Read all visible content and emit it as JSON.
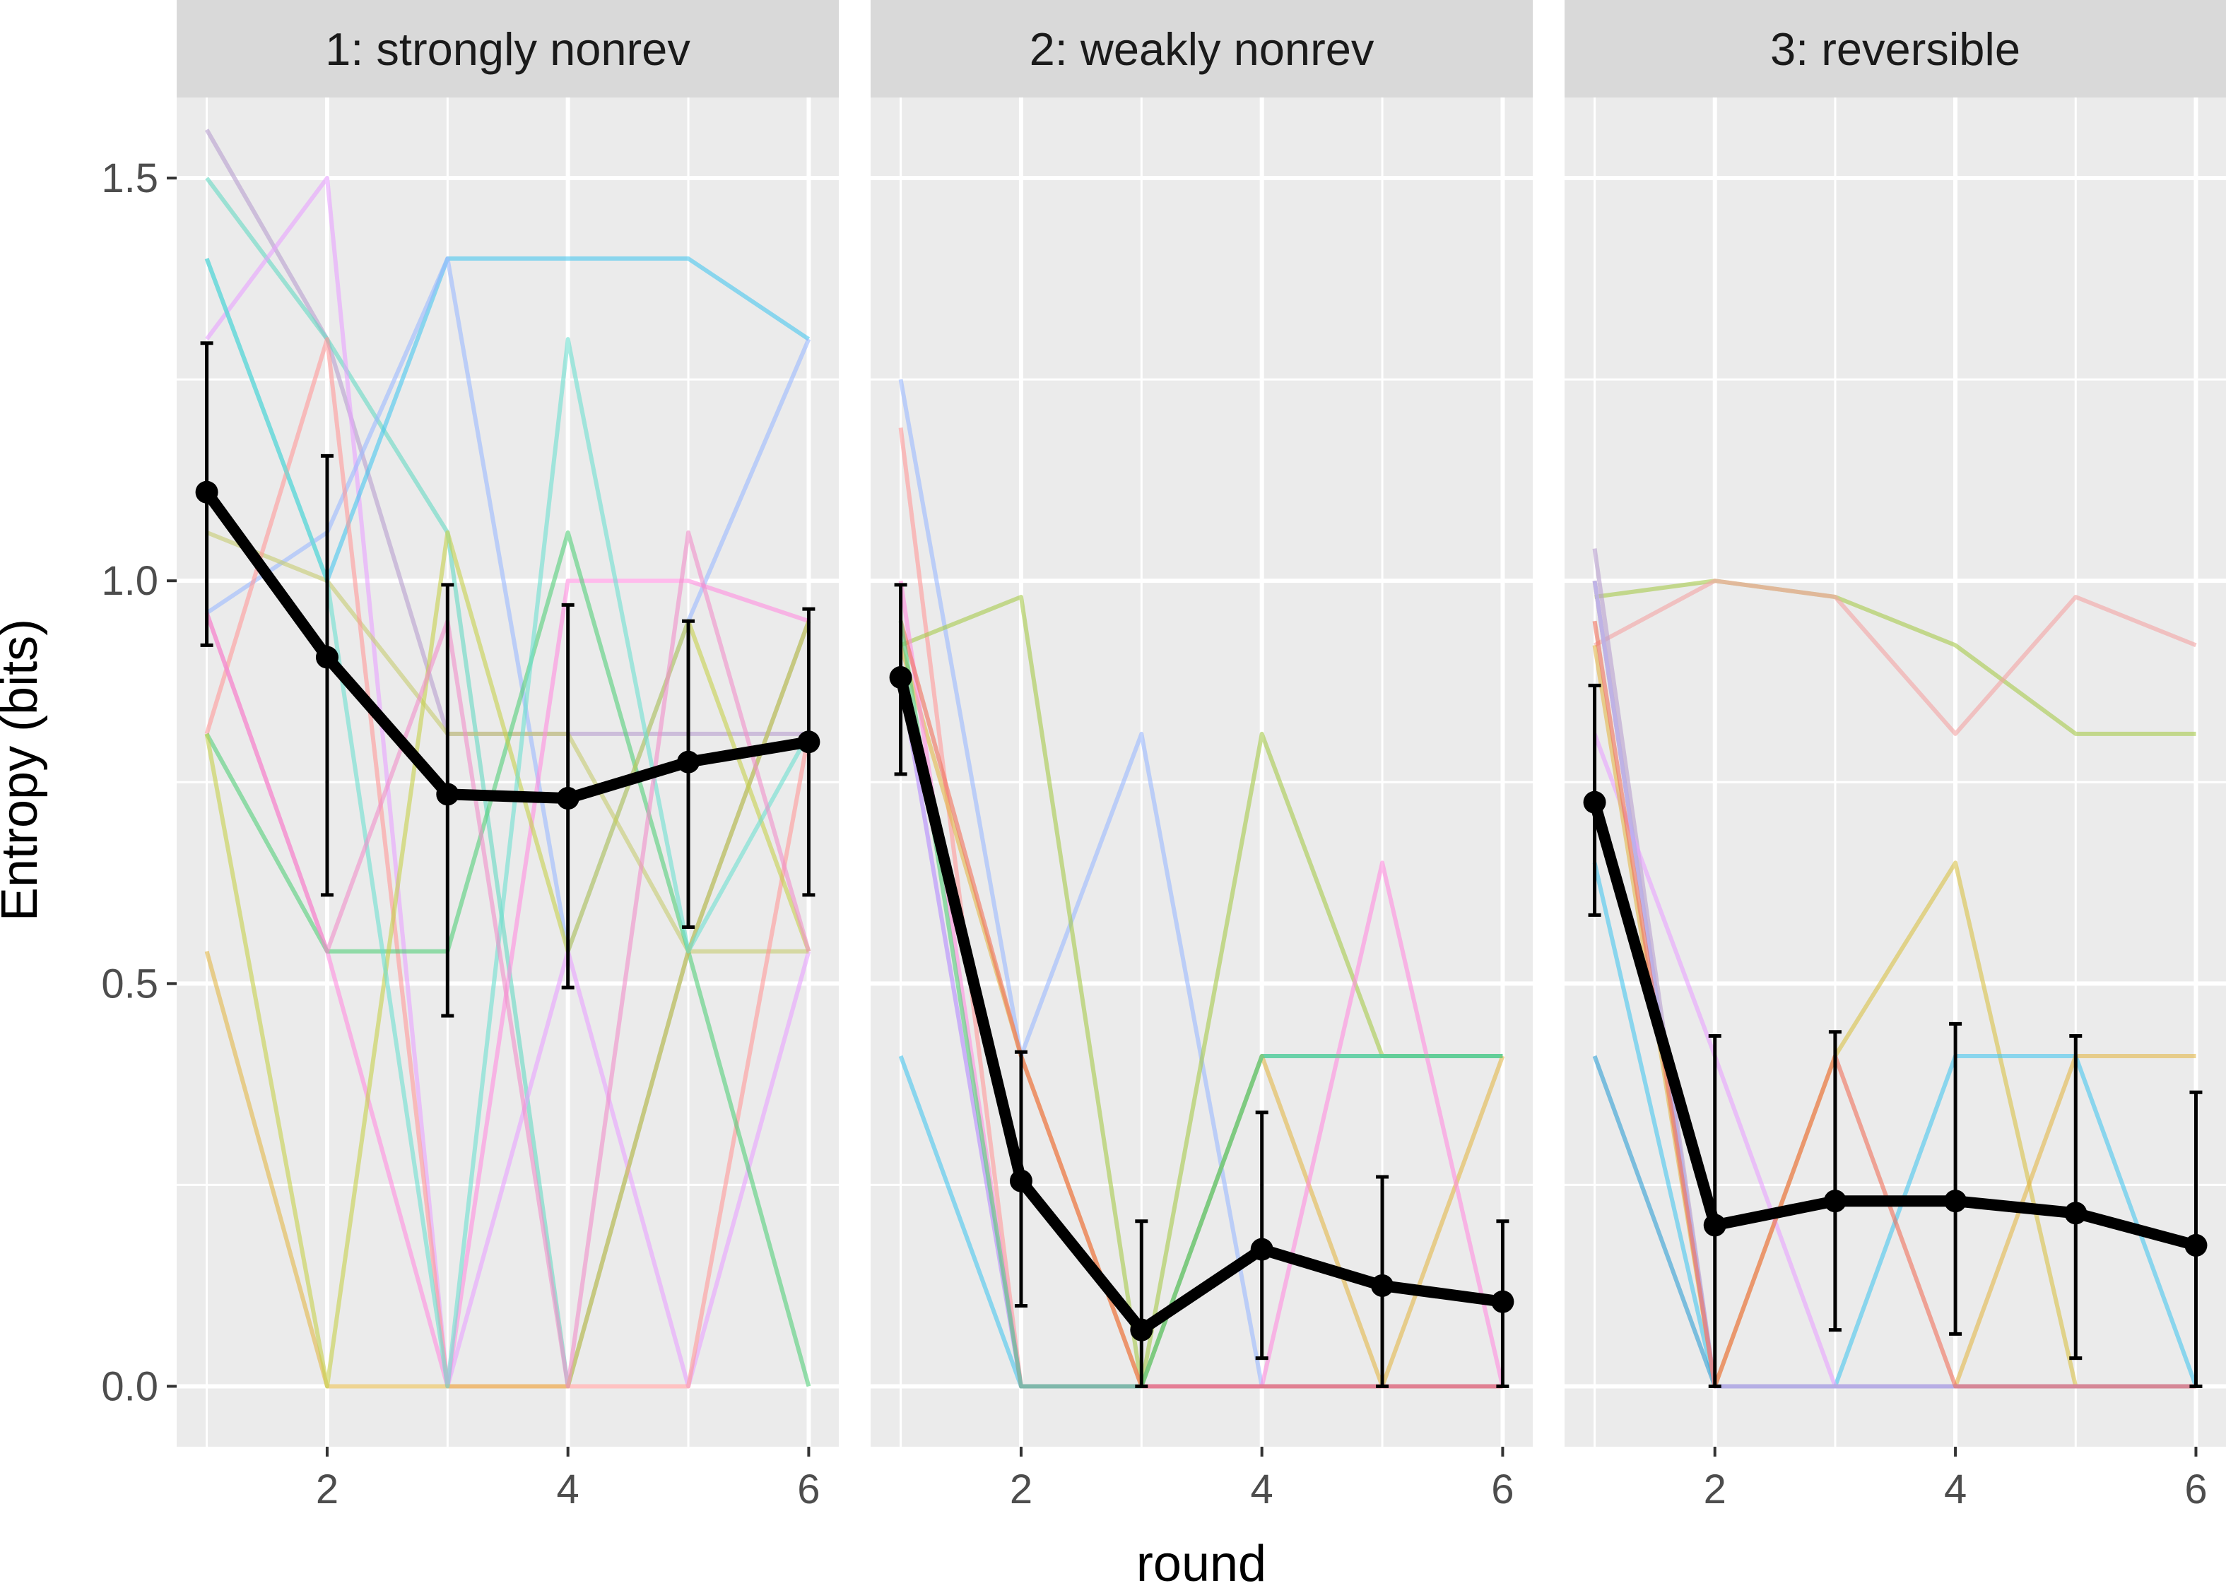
{
  "chart_data": {
    "type": "line",
    "ylabel": "Entropy (bits)",
    "xlabel": "round",
    "x": [
      1,
      2,
      3,
      4,
      5,
      6
    ],
    "xlim": [
      0.75,
      6.25
    ],
    "ylim": [
      -0.075,
      1.6
    ],
    "xticks": [
      2,
      4,
      6
    ],
    "yticks": [
      0.0,
      0.5,
      1.0,
      1.5
    ],
    "ytick_labels": [
      "0.0",
      "0.5",
      "1.0",
      "1.5"
    ],
    "grid": true,
    "mean_color": "#000000",
    "panels": [
      {
        "title": "1: strongly nonrev",
        "mean": {
          "values": [
            1.11,
            0.905,
            0.735,
            0.73,
            0.775,
            0.8
          ],
          "lower": [
            0.92,
            0.61,
            0.46,
            0.495,
            0.57,
            0.61
          ],
          "upper": [
            1.295,
            1.155,
            0.995,
            0.97,
            0.95,
            0.965
          ]
        },
        "participants": [
          {
            "color": "#b79fcf",
            "values": [
              1.56,
              1.3,
              0.81,
              0.81,
              0.81,
              0.81
            ]
          },
          {
            "color": "#66d9c3",
            "values": [
              1.5,
              1.3,
              1.06,
              0.0,
              0.54,
              0.95
            ]
          },
          {
            "color": "#e7a2ff",
            "values": [
              1.3,
              1.5,
              0.0,
              0.54,
              0.0,
              0.54
            ]
          },
          {
            "color": "#48c7ef",
            "values": [
              1.4,
              1.0,
              1.4,
              1.4,
              1.4,
              1.3
            ]
          },
          {
            "color": "#9bb9ff",
            "values": [
              0.96,
              1.06,
              1.4,
              0.54,
              0.95,
              1.3
            ]
          },
          {
            "color": "#c7cc72",
            "values": [
              1.06,
              1.0,
              0.81,
              0.81,
              0.54,
              0.54
            ]
          },
          {
            "color": "#ff9a9a",
            "values": [
              0.81,
              1.3,
              0.0,
              0.0,
              0.0,
              0.81
            ]
          },
          {
            "color": "#ff8ee0",
            "values": [
              0.96,
              0.54,
              0.0,
              1.0,
              1.0,
              0.95
            ]
          },
          {
            "color": "#54cf7a",
            "values": [
              0.81,
              0.54,
              0.54,
              1.06,
              0.54,
              0.0
            ]
          },
          {
            "color": "#e3b84a",
            "values": [
              0.54,
              0.0,
              0.0,
              0.0,
              0.54,
              0.95
            ]
          },
          {
            "color": "#c6d04c",
            "values": [
              0.81,
              0.0,
              1.06,
              0.54,
              0.95,
              0.54
            ]
          },
          {
            "color": "#6ee0d0",
            "values": [
              1.4,
              1.0,
              0.0,
              1.3,
              0.54,
              0.81
            ]
          },
          {
            "color": "#f08fc9",
            "values": [
              0.96,
              0.54,
              0.95,
              0.0,
              1.06,
              0.54
            ]
          }
        ]
      },
      {
        "title": "2: weakly nonrev",
        "mean": {
          "values": [
            0.88,
            0.255,
            0.07,
            0.17,
            0.125,
            0.105
          ],
          "lower": [
            0.76,
            0.1,
            0.0,
            0.035,
            0.0,
            0.0
          ],
          "upper": [
            0.995,
            0.415,
            0.205,
            0.34,
            0.26,
            0.205
          ]
        },
        "participants": [
          {
            "color": "#9bb9ff",
            "values": [
              1.25,
              0.41,
              0.81,
              0.0,
              0.0,
              0.0
            ]
          },
          {
            "color": "#ff9a9a",
            "values": [
              1.19,
              0.0,
              0.0,
              0.0,
              0.0,
              0.0
            ]
          },
          {
            "color": "#a7c94b",
            "values": [
              0.92,
              0.98,
              0.0,
              0.81,
              0.41,
              0.41
            ]
          },
          {
            "color": "#48c7ef",
            "values": [
              0.41,
              0.0,
              0.0,
              0.41,
              0.41,
              0.41
            ]
          },
          {
            "color": "#e3b84a",
            "values": [
              0.92,
              0.41,
              0.0,
              0.41,
              0.0,
              0.41
            ]
          },
          {
            "color": "#ff8ee0",
            "values": [
              1.0,
              0.0,
              0.0,
              0.0,
              0.65,
              0.0
            ]
          },
          {
            "color": "#b48bff",
            "values": [
              0.88,
              0.0,
              0.0,
              0.0,
              0.0,
              0.0
            ]
          },
          {
            "color": "#f06f5a",
            "values": [
              0.95,
              0.41,
              0.0,
              0.0,
              0.0,
              0.0
            ]
          },
          {
            "color": "#54cf7a",
            "values": [
              0.95,
              0.0,
              0.0,
              0.41,
              0.41,
              0.41
            ]
          }
        ]
      },
      {
        "title": "3: reversible",
        "mean": {
          "values": [
            0.725,
            0.2,
            0.23,
            0.23,
            0.215,
            0.175
          ],
          "lower": [
            0.585,
            0.0,
            0.07,
            0.065,
            0.035,
            0.0
          ],
          "upper": [
            0.87,
            0.435,
            0.44,
            0.45,
            0.435,
            0.365
          ]
        },
        "participants": [
          {
            "color": "#a7c94b",
            "values": [
              0.98,
              1.0,
              0.98,
              0.92,
              0.81,
              0.81
            ]
          },
          {
            "color": "#f4a3a3",
            "values": [
              0.92,
              1.0,
              0.98,
              0.81,
              0.98,
              0.92
            ]
          },
          {
            "color": "#b79fcf",
            "values": [
              1.04,
              0.0,
              0.0,
              0.0,
              0.0,
              0.0
            ]
          },
          {
            "color": "#d8c247",
            "values": [
              1.0,
              0.0,
              0.41,
              0.65,
              0.0,
              0.0
            ]
          },
          {
            "color": "#48c7ef",
            "values": [
              0.65,
              0.0,
              0.0,
              0.41,
              0.41,
              0.0
            ]
          },
          {
            "color": "#e7a2ff",
            "values": [
              0.81,
              0.41,
              0.0,
              0.0,
              0.0,
              0.0
            ]
          },
          {
            "color": "#2f9fd4",
            "values": [
              0.41,
              0.0,
              0.0,
              0.0,
              0.0,
              0.0
            ]
          },
          {
            "color": "#e3b84a",
            "values": [
              0.92,
              0.0,
              0.0,
              0.0,
              0.41,
              0.41
            ]
          },
          {
            "color": "#ff8ee0",
            "values": [
              1.0,
              0.0,
              0.0,
              0.0,
              0.0,
              0.0
            ]
          },
          {
            "color": "#9bb9ff",
            "values": [
              1.0,
              0.0,
              0.0,
              0.0,
              0.0,
              0.0
            ]
          },
          {
            "color": "#f06f5a",
            "values": [
              0.95,
              0.0,
              0.41,
              0.0,
              0.0,
              0.0
            ]
          }
        ]
      }
    ]
  }
}
